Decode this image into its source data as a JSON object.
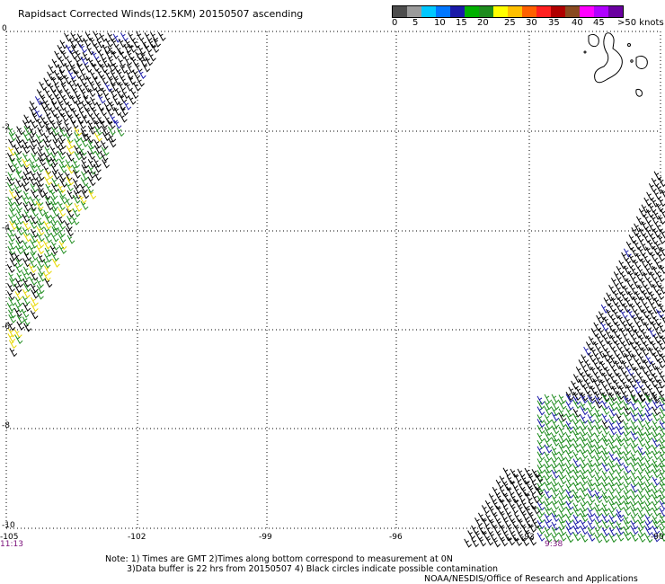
{
  "title": "Rapidsact Corrected Winds(12.5KM) 20150507 ascending",
  "legend": {
    "labels": [
      "0",
      "5",
      "10",
      "15",
      "20",
      "25",
      "30",
      "35",
      "40",
      "45",
      ">50 knots"
    ],
    "colors": [
      "#4d4d4d",
      "#9b9b9b",
      "#00c8ff",
      "#0077ff",
      "#1a1aa8",
      "#00b000",
      "#1e8c1e",
      "#ffff00",
      "#ffc000",
      "#ff6000",
      "#ff2020",
      "#b00000",
      "#8a4a20",
      "#ff00ff",
      "#b000ff",
      "#6a00a0"
    ]
  },
  "map": {
    "lat_labels": [
      "0",
      "-2",
      "-4",
      "-6",
      "-8",
      "-10"
    ],
    "lon_labels": [
      "-105",
      "-102",
      "-99",
      "-96",
      "-93",
      "-90"
    ],
    "times": [
      "11:13",
      "9:38"
    ],
    "wind_colors": {
      "calm": "#000000",
      "light": "#1a1aa8",
      "moderate": "#1e8c1e",
      "fresh": "#e8d800"
    }
  },
  "notes": {
    "line1": "Note: 1) Times are GMT 2)Times along bottom correspond to measurement at 0N",
    "line2": "3)Data buffer is 22 hrs from 20150507 4) Black circles indicate possible contamination",
    "credit": "NOAA/NESDIS/Office of Research and Applications"
  }
}
